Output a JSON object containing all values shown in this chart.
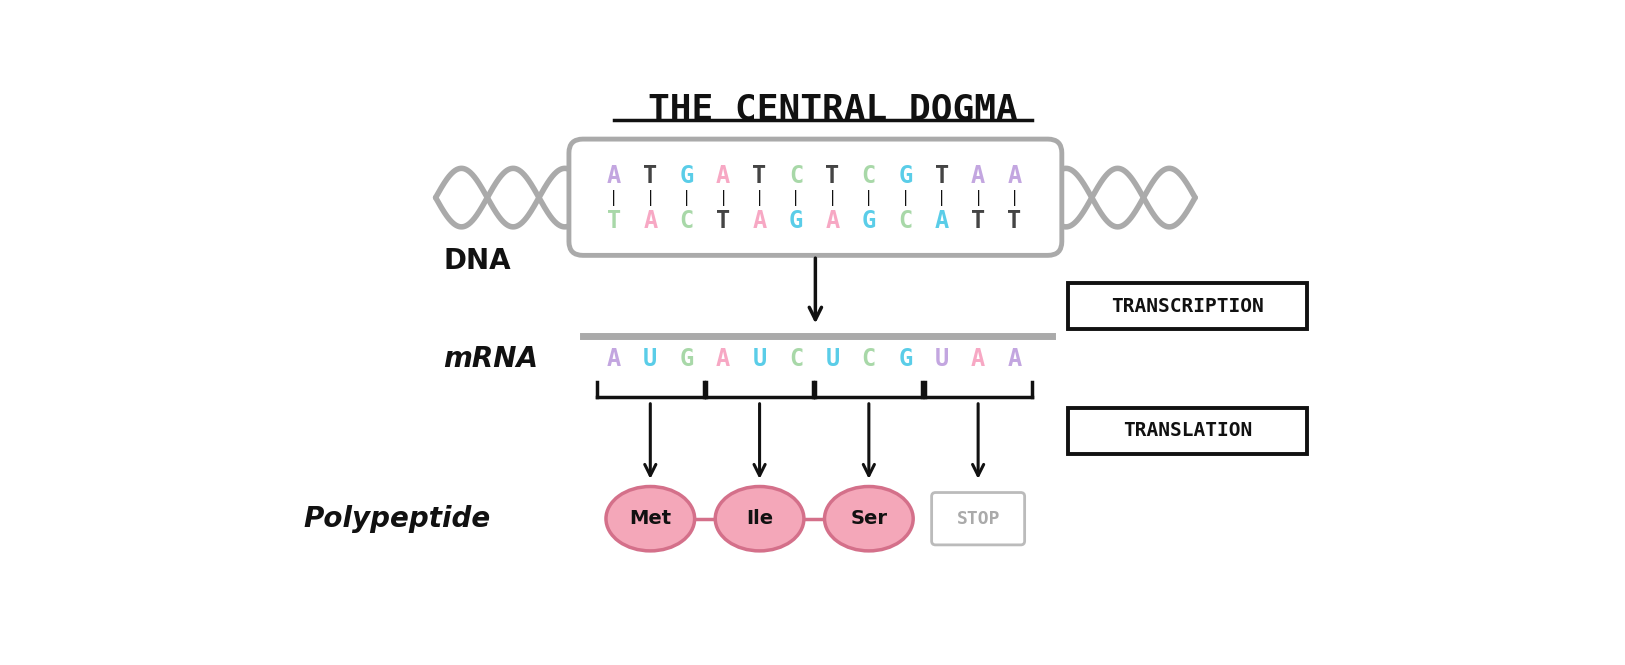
{
  "title": "THE CENTRAL DOGMA",
  "title_fontsize": 26,
  "dna_seq_top": [
    "A",
    "T",
    "G",
    "A",
    "T",
    "C",
    "T",
    "C",
    "G",
    "T",
    "A",
    "A"
  ],
  "dna_seq_bot": [
    "T",
    "A",
    "C",
    "T",
    "A",
    "G",
    "A",
    "G",
    "C",
    "A",
    "T",
    "T"
  ],
  "dna_colors_top": [
    "#c3a6e0",
    "#444444",
    "#5acde8",
    "#f7a8c4",
    "#444444",
    "#a8d8a8",
    "#444444",
    "#a8d8a8",
    "#5acde8",
    "#444444",
    "#c3a6e0",
    "#c3a6e0"
  ],
  "dna_colors_bot": [
    "#a8d8a8",
    "#f7a8c4",
    "#a8d8a8",
    "#444444",
    "#f7a8c4",
    "#5acde8",
    "#f7a8c4",
    "#5acde8",
    "#a8d8a8",
    "#5acde8",
    "#444444",
    "#444444"
  ],
  "mrna_seq": [
    "A",
    "U",
    "G",
    "A",
    "U",
    "C",
    "U",
    "C",
    "G",
    "U",
    "A",
    "A"
  ],
  "mrna_colors": [
    "#c3a6e0",
    "#5acde8",
    "#a8d8a8",
    "#f7a8c4",
    "#5acde8",
    "#a8d8a8",
    "#5acde8",
    "#a8d8a8",
    "#5acde8",
    "#c3a6e0",
    "#f7a8c4",
    "#c3a6e0"
  ],
  "amino_acids": [
    "Met",
    "Ile",
    "Ser"
  ],
  "aa_fill": "#f4a7b9",
  "aa_edge": "#d4708a",
  "aa_text_color": "#111111",
  "stop_label": "STOP",
  "stop_edge": "#bbbbbb",
  "stop_text_color": "#aaaaaa",
  "label_dna": "DNA",
  "label_mrna": "mRNA",
  "label_polypeptide": "Polypeptide",
  "label_transcription": "TRANSCRIPTION",
  "label_translation": "TRANSLATION",
  "background_color": "#ffffff",
  "arrow_color": "#111111",
  "dna_capsule_color": "#aaaaaa",
  "dashes_color": "#111111",
  "mrna_line_color": "#aaaaaa",
  "bracket_color": "#111111"
}
